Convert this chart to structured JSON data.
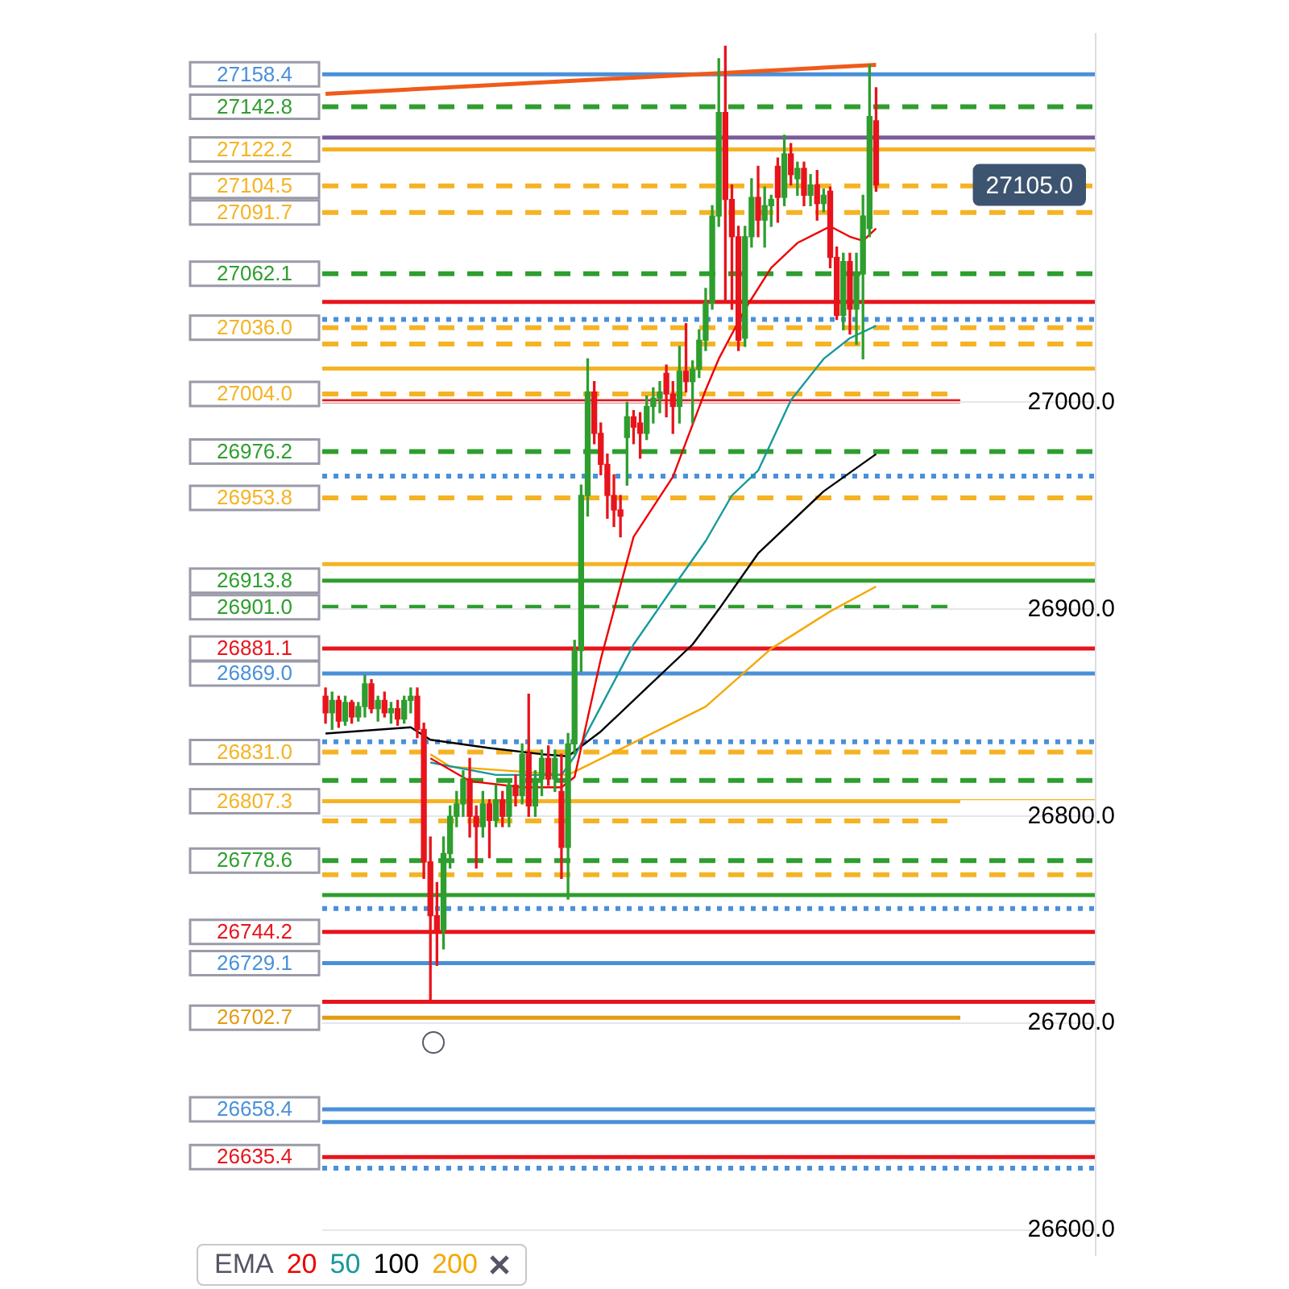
{
  "chart_data": {
    "type": "candlestick",
    "categories": [
      null,
      null,
      null,
      null,
      null,
      null,
      null,
      null,
      null,
      null,
      null,
      null,
      null,
      null,
      null,
      null,
      null,
      null,
      null,
      null,
      null,
      null,
      null,
      null,
      null,
      null,
      null,
      null,
      null,
      null,
      null,
      null,
      null,
      null,
      null,
      null,
      null,
      null,
      null,
      null,
      null,
      null,
      null,
      null,
      null,
      null,
      null,
      null,
      null,
      null,
      null,
      null,
      null,
      null,
      null,
      null,
      null,
      null,
      null,
      null,
      null,
      null,
      null,
      null,
      null,
      null,
      null,
      null,
      null,
      null,
      null,
      null,
      null,
      null,
      null,
      null,
      null,
      null,
      null,
      null,
      null,
      null,
      null,
      null,
      null,
      null,
      null,
      null,
      null,
      null,
      null,
      null,
      null,
      null,
      null,
      null,
      null,
      null,
      null,
      null,
      null,
      null,
      null,
      null,
      null,
      null,
      null,
      null,
      null,
      null,
      null,
      null,
      null,
      null,
      null,
      null,
      null,
      null
    ],
    "ohlc": [
      [
        26858,
        26862,
        26845,
        26850
      ],
      [
        26850,
        26860,
        26842,
        26856
      ],
      [
        26856,
        26858,
        26843,
        26846
      ],
      [
        26846,
        26858,
        26844,
        26855
      ],
      [
        26855,
        26856,
        26845,
        26848
      ],
      [
        26848,
        26855,
        26846,
        26853
      ],
      [
        26853,
        26868,
        26848,
        26864
      ],
      [
        26864,
        26866,
        26850,
        26852
      ],
      [
        26852,
        26858,
        26846,
        26856
      ],
      [
        26856,
        26860,
        26848,
        26850
      ],
      [
        26850,
        26855,
        26845,
        26852
      ],
      [
        26852,
        26856,
        26844,
        26847
      ],
      [
        26847,
        26858,
        26845,
        26856
      ],
      [
        26856,
        26862,
        26850,
        26858
      ],
      [
        26858,
        26862,
        26838,
        26842
      ],
      [
        26842,
        26845,
        26770,
        26778
      ],
      [
        26778,
        26790,
        26710,
        26752
      ],
      [
        26752,
        26768,
        26728,
        26745
      ],
      [
        26745,
        26790,
        26736,
        26782
      ],
      [
        26782,
        26805,
        26775,
        26800
      ],
      [
        26800,
        26812,
        26795,
        26806
      ],
      [
        26806,
        26822,
        26800,
        26818
      ],
      [
        26818,
        26828,
        26790,
        26800
      ],
      [
        26800,
        26805,
        26775,
        26795
      ],
      [
        26795,
        26812,
        26790,
        26806
      ],
      [
        26806,
        26808,
        26780,
        26798
      ],
      [
        26798,
        26815,
        26795,
        26808
      ],
      [
        26808,
        26812,
        26795,
        26800
      ],
      [
        26800,
        26818,
        26795,
        26815
      ],
      [
        26815,
        26820,
        26805,
        26810
      ],
      [
        26810,
        26835,
        26806,
        26830
      ],
      [
        26830,
        26859,
        26800,
        26805
      ],
      [
        26805,
        26822,
        26800,
        26818
      ],
      [
        26818,
        26832,
        26810,
        26828
      ],
      [
        26828,
        26834,
        26815,
        26818
      ],
      [
        26818,
        26832,
        26812,
        26828
      ],
      [
        26812,
        26830,
        26770,
        26785
      ],
      [
        26785,
        26840,
        26760,
        26835
      ],
      [
        26835,
        26885,
        26830,
        26880
      ],
      [
        26880,
        26960,
        26870,
        26955
      ],
      [
        26955,
        27021,
        26945,
        27005
      ],
      [
        27005,
        27010,
        26980,
        26985
      ],
      [
        26985,
        26990,
        26965,
        26970
      ],
      [
        26970,
        26975,
        26944,
        26955
      ],
      [
        26955,
        26965,
        26940,
        26948
      ],
      [
        26948,
        26955,
        26935,
        26945
      ],
      [
        26983,
        27000,
        26960,
        26993
      ],
      [
        26993,
        26996,
        26980,
        26988
      ],
      [
        26990,
        26995,
        26973,
        26985
      ],
      [
        26985,
        27003,
        26982,
        26998
      ],
      [
        26998,
        27007,
        26990,
        27002
      ],
      [
        27002,
        27010,
        26995,
        27005
      ],
      [
        27014,
        27018,
        26993,
        27004
      ],
      [
        27004,
        27010,
        26985,
        26998
      ],
      [
        26998,
        27027,
        26990,
        27015
      ],
      [
        27015,
        27038,
        27005,
        27010
      ],
      [
        27010,
        27020,
        26990,
        27016
      ],
      [
        27016,
        27035,
        27012,
        27030
      ],
      [
        27030,
        27055,
        27025,
        27048
      ],
      [
        27048,
        27095,
        27045,
        27090
      ],
      [
        27090,
        27166,
        27085,
        27140
      ],
      [
        27140,
        27172,
        27048,
        27098
      ],
      [
        27098,
        27105,
        27045,
        27080
      ],
      [
        27080,
        27085,
        27025,
        27030
      ],
      [
        27031,
        27085,
        27027,
        27080
      ],
      [
        27080,
        27108,
        27075,
        27099
      ],
      [
        27099,
        27114,
        27080,
        27088
      ],
      [
        27088,
        27104,
        27075,
        27095
      ],
      [
        27095,
        27100,
        27085,
        27098
      ],
      [
        27114,
        27118,
        27087,
        27099
      ],
      [
        27099,
        27129,
        27095,
        27120
      ],
      [
        27120,
        27125,
        27105,
        27110
      ],
      [
        27108,
        27116,
        27100,
        27113
      ],
      [
        27113,
        27116,
        27095,
        27100
      ],
      [
        27100,
        27110,
        27095,
        27105
      ],
      [
        27105,
        27112,
        27088,
        27096
      ],
      [
        27096,
        27103,
        27092,
        27100
      ],
      [
        27102,
        27104,
        27065,
        27070
      ],
      [
        27070,
        27075,
        27040,
        27042
      ],
      [
        27042,
        27072,
        27035,
        27068
      ],
      [
        27068,
        27072,
        27033,
        27045
      ],
      [
        27045,
        27072,
        27028,
        27062
      ],
      [
        27062,
        27100,
        27021,
        27090
      ],
      [
        27084,
        27163,
        27080,
        27138
      ],
      [
        27136,
        27152,
        27102,
        27105
      ],
      null,
      null,
      null,
      null,
      null,
      null,
      null,
      null,
      null,
      null,
      null,
      null,
      null,
      null,
      null,
      null,
      null,
      null,
      null,
      null,
      null,
      null,
      null,
      null,
      null,
      null,
      null,
      null,
      null,
      null,
      null,
      null,
      null
    ],
    "series": [
      {
        "name": "20",
        "type": "line",
        "color": "#ee0000",
        "values": [
          null,
          null,
          null,
          null,
          null,
          null,
          null,
          null,
          null,
          null,
          null,
          null,
          null,
          null,
          null,
          null,
          26828,
          null,
          null,
          null,
          null,
          null,
          26817,
          null,
          null,
          null,
          null,
          null,
          null,
          null,
          26814,
          null,
          null,
          null,
          null,
          null,
          26814,
          null,
          26819,
          null,
          null,
          null,
          26876,
          null,
          null,
          null,
          null,
          26935,
          null,
          null,
          null,
          null,
          null,
          26964,
          null,
          null,
          null,
          null,
          27006,
          null,
          27021,
          null,
          null,
          null,
          27045,
          null,
          null,
          null,
          27065,
          null,
          null,
          null,
          27077,
          null,
          null,
          null,
          null,
          27085,
          null,
          null,
          27080,
          null,
          27078,
          null,
          27084,
          null,
          null,
          null,
          null,
          null,
          null,
          null,
          null,
          null,
          null,
          null,
          null,
          null,
          null,
          null,
          null,
          null,
          null,
          null,
          null,
          null,
          null,
          null,
          null,
          null,
          null,
          null,
          null,
          null,
          null,
          null,
          null,
          null
        ]
      },
      {
        "name": "50",
        "type": "line",
        "color": "#17999b",
        "values": [
          null,
          null,
          null,
          null,
          null,
          null,
          null,
          null,
          null,
          null,
          null,
          null,
          null,
          null,
          null,
          null,
          26826,
          null,
          null,
          null,
          null,
          null,
          null,
          null,
          null,
          null,
          26820,
          null,
          null,
          null,
          null,
          null,
          null,
          null,
          null,
          null,
          26820,
          null,
          26829,
          null,
          null,
          null,
          26853,
          null,
          null,
          null,
          null,
          26883,
          null,
          null,
          null,
          null,
          null,
          null,
          26915,
          null,
          null,
          null,
          26933,
          null,
          null,
          null,
          26955,
          null,
          null,
          null,
          26967,
          null,
          null,
          null,
          null,
          27001,
          null,
          null,
          null,
          null,
          27021,
          null,
          null,
          null,
          27031,
          null,
          null,
          null,
          27037,
          null,
          null,
          null,
          null,
          null,
          null,
          null,
          null,
          null,
          null,
          null,
          null,
          null,
          null,
          null,
          null,
          null,
          null,
          null,
          null,
          null,
          null,
          null,
          null,
          null,
          null,
          null,
          null,
          null,
          null,
          null,
          null,
          null
        ]
      },
      {
        "name": "100",
        "type": "line",
        "color": "#000000",
        "values": [
          26840,
          null,
          null,
          null,
          null,
          null,
          null,
          null,
          null,
          null,
          null,
          null,
          null,
          26843,
          null,
          null,
          26837,
          null,
          null,
          null,
          null,
          null,
          null,
          null,
          null,
          26833,
          null,
          null,
          null,
          null,
          null,
          null,
          null,
          26830,
          null,
          null,
          null,
          26829,
          null,
          null,
          null,
          null,
          26841,
          null,
          null,
          null,
          null,
          null,
          null,
          26862,
          null,
          null,
          null,
          null,
          null,
          null,
          26883,
          null,
          null,
          null,
          26900,
          null,
          null,
          null,
          null,
          null,
          26927,
          null,
          null,
          null,
          null,
          null,
          null,
          null,
          null,
          null,
          26957,
          null,
          null,
          null,
          null,
          null,
          null,
          null,
          26975,
          null,
          null,
          null,
          null,
          null,
          null,
          null,
          null,
          null,
          null,
          null,
          null,
          null,
          null,
          null,
          null,
          null,
          null,
          null,
          null,
          null,
          null,
          null,
          null,
          null,
          null,
          null,
          null,
          null,
          null,
          null,
          null,
          null
        ]
      },
      {
        "name": "200",
        "type": "line",
        "color": "#f5a800",
        "values": [
          null,
          null,
          null,
          null,
          null,
          null,
          null,
          null,
          null,
          null,
          null,
          null,
          null,
          null,
          null,
          null,
          26830,
          null,
          null,
          26824,
          null,
          null,
          null,
          null,
          null,
          null,
          null,
          null,
          null,
          null,
          null,
          null,
          null,
          null,
          null,
          null,
          null,
          26820,
          null,
          null,
          null,
          null,
          null,
          null,
          null,
          null,
          26834,
          null,
          null,
          null,
          null,
          null,
          null,
          null,
          null,
          null,
          null,
          null,
          26853,
          null,
          null,
          null,
          null,
          null,
          null,
          null,
          null,
          null,
          26881,
          null,
          null,
          null,
          null,
          null,
          null,
          null,
          null,
          26899,
          null,
          null,
          null,
          null,
          null,
          null,
          26911,
          null,
          null,
          null,
          null,
          null,
          null,
          null,
          null,
          null,
          null,
          null,
          null,
          null,
          null,
          null,
          null,
          null,
          null,
          null,
          null,
          null,
          null,
          null,
          null,
          null,
          null,
          null,
          null,
          null,
          null,
          null,
          null,
          null
        ]
      },
      {
        "type": "line",
        "color": "#f05a1a",
        "values": [
          27149,
          null,
          null,
          null,
          null,
          null,
          null,
          null,
          null,
          null,
          null,
          null,
          null,
          null,
          null,
          null,
          null,
          null,
          null,
          null,
          null,
          null,
          null,
          null,
          null,
          null,
          null,
          null,
          null,
          null,
          null,
          null,
          null,
          null,
          null,
          null,
          null,
          null,
          null,
          null,
          null,
          null,
          null,
          null,
          null,
          null,
          null,
          null,
          null,
          null,
          null,
          null,
          null,
          null,
          null,
          null,
          null,
          null,
          null,
          null,
          null,
          null,
          null,
          null,
          null,
          null,
          null,
          null,
          null,
          null,
          null,
          null,
          null,
          null,
          null,
          null,
          null,
          null,
          null,
          null,
          null,
          null,
          null,
          null,
          27163,
          null,
          null,
          null,
          null,
          null,
          null,
          null,
          null,
          null,
          null,
          null,
          null,
          null,
          null,
          null,
          null,
          null,
          null,
          null,
          null,
          null,
          null,
          null,
          null,
          null,
          null,
          null,
          null,
          null,
          null,
          null,
          null,
          null
        ]
      }
    ],
    "legend_title": "EMA",
    "legend": "bottom left",
    "tick_labels": "y",
    "grid": "y",
    "ylim": [
      26588,
      27178
    ],
    "yticks": [
      {
        "value": 26600,
        "label": "26600.0"
      },
      {
        "value": 26700,
        "label": "26700.0"
      },
      {
        "value": 26800,
        "label": "26800.0"
      },
      {
        "value": 26900,
        "label": "26900.0"
      },
      {
        "value": 27000,
        "label": "27000.0"
      }
    ],
    "ref_lines": [
      {
        "axis": "y",
        "value": 27158.4,
        "label": "27158.4",
        "color": "#4a90d9",
        "line_style": "solid"
      },
      {
        "axis": "y",
        "value": 27142.8,
        "label": "27142.8",
        "color": "#2e9e2e",
        "line_style": "dashed"
      },
      {
        "axis": "y",
        "value": 27127.9,
        "color": "#7a5c9a",
        "line_style": "solid"
      },
      {
        "axis": "y",
        "value": 27122.2,
        "label": "27122.2",
        "color": "#f5b324",
        "line_style": "solid"
      },
      {
        "axis": "y",
        "value": 27104.5,
        "label": "27104.5",
        "color": "#f5b324",
        "line_style": "dashed"
      },
      {
        "axis": "y",
        "value": 27091.7,
        "label": "27091.7",
        "color": "#f5b324",
        "line_style": "dashed"
      },
      {
        "axis": "y",
        "value": 27062.1,
        "label": "27062.1",
        "color": "#2e9e2e",
        "line_style": "dashed"
      },
      {
        "axis": "y",
        "value": 27048.5,
        "color": "#e8141c",
        "line_style": "solid"
      },
      {
        "axis": "y",
        "value": 27040.0,
        "color": "#4a90d9",
        "line_style": "dotted"
      },
      {
        "axis": "y",
        "value": 27036.0,
        "label": "27036.0",
        "color": "#f5b324",
        "line_style": "dashed"
      },
      {
        "axis": "y",
        "value": 27028.2,
        "color": "#f5b324",
        "line_style": "dashed"
      },
      {
        "axis": "y",
        "value": 27016.3,
        "color": "#f5b324",
        "line_style": "solid"
      },
      {
        "axis": "y",
        "value": 27004.0,
        "label": "27004.0",
        "color": "#f5b324",
        "line_style": "dashed"
      },
      {
        "axis": "y",
        "value": 27000.5,
        "color": "#e8141c",
        "line_style": "solid"
      },
      {
        "axis": "y",
        "value": 26976.2,
        "label": "26976.2",
        "color": "#2e9e2e",
        "line_style": "dashed"
      },
      {
        "axis": "y",
        "value": 26964.3,
        "color": "#4a90d9",
        "line_style": "dotted"
      },
      {
        "axis": "y",
        "value": 26953.8,
        "label": "26953.8",
        "color": "#f5b324",
        "line_style": "dashed"
      },
      {
        "axis": "y",
        "value": 26921.8,
        "color": "#f5b324",
        "line_style": "solid"
      },
      {
        "axis": "y",
        "value": 26913.8,
        "label": "26913.8",
        "color": "#2e9e2e",
        "line_style": "solid"
      },
      {
        "axis": "y",
        "value": 26901.0,
        "label": "26901.0",
        "color": "#2e9e2e",
        "line_style": "dashed"
      },
      {
        "axis": "y",
        "value": 26881.1,
        "label": "26881.1",
        "color": "#e8141c",
        "line_style": "solid"
      },
      {
        "axis": "y",
        "value": 26869.0,
        "label": "26869.0",
        "color": "#4a90d9",
        "line_style": "solid"
      },
      {
        "axis": "y",
        "value": 26836.0,
        "color": "#4a90d9",
        "line_style": "dotted"
      },
      {
        "axis": "y",
        "value": 26831.0,
        "label": "26831.0",
        "color": "#f5b324",
        "line_style": "dashed"
      },
      {
        "axis": "y",
        "value": 26817.3,
        "color": "#2e9e2e",
        "line_style": "dashed"
      },
      {
        "axis": "y",
        "value": 26807.3,
        "label": "26807.3",
        "color": "#f5b324",
        "line_style": "solid"
      },
      {
        "axis": "y",
        "value": 26797.8,
        "color": "#f5b324",
        "line_style": "dashed"
      },
      {
        "axis": "y",
        "value": 26778.6,
        "label": "26778.6",
        "color": "#2e9e2e",
        "line_style": "dashed"
      },
      {
        "axis": "y",
        "value": 26771.8,
        "color": "#f5b324",
        "line_style": "dashed"
      },
      {
        "axis": "y",
        "value": 26762.0,
        "color": "#2e9e2e",
        "line_style": "solid"
      },
      {
        "axis": "y",
        "value": 26755.4,
        "color": "#4a90d9",
        "line_style": "dotted"
      },
      {
        "axis": "y",
        "value": 26744.2,
        "label": "26744.2",
        "color": "#e8141c",
        "line_style": "solid"
      },
      {
        "axis": "y",
        "value": 26729.1,
        "label": "26729.1",
        "color": "#4a90d9",
        "line_style": "solid"
      },
      {
        "axis": "y",
        "value": 26710.4,
        "color": "#e8141c",
        "line_style": "solid"
      },
      {
        "axis": "y",
        "value": 26702.7,
        "label": "26702.7",
        "color": "#e39b12",
        "line_style": "solid"
      },
      {
        "axis": "y",
        "value": 26658.4,
        "label": "26658.4",
        "color": "#4a90d9",
        "line_style": "solid"
      },
      {
        "axis": "y",
        "value": 26652.3,
        "color": "#4a90d9",
        "line_style": "solid"
      },
      {
        "axis": "y",
        "value": 26635.4,
        "label": "26635.4",
        "color": "#e8141c",
        "line_style": "solid"
      },
      {
        "axis": "y",
        "value": 26630.0,
        "color": "#4a90d9",
        "line_style": "dotted"
      }
    ],
    "annotations": [
      {
        "text": "27105.0",
        "y": 27105.0
      }
    ]
  }
}
